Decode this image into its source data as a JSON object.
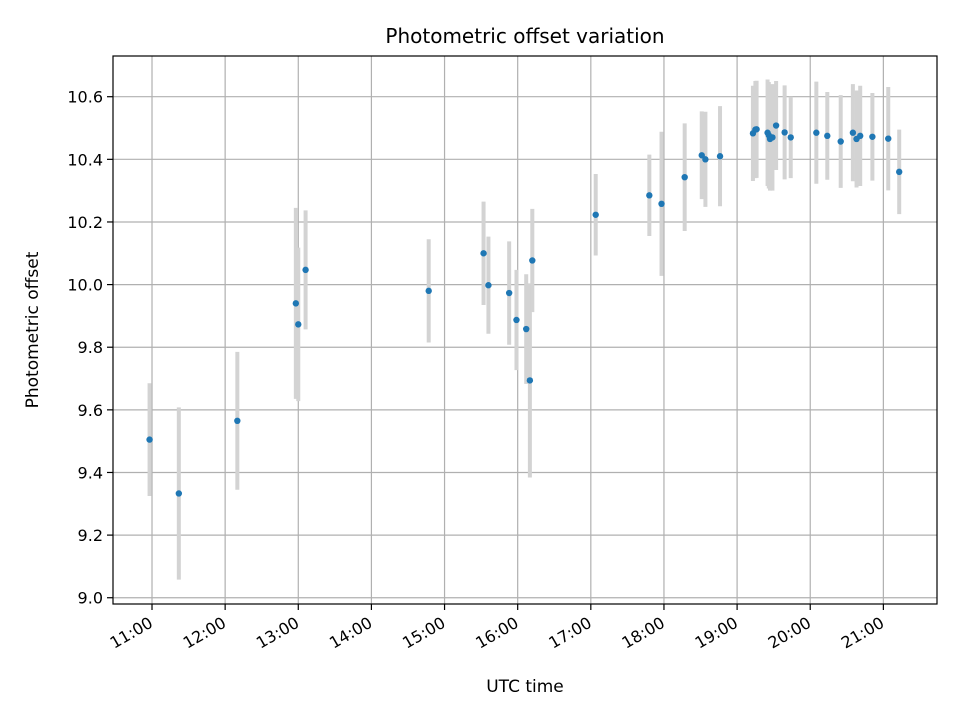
{
  "chart_data": {
    "type": "scatter",
    "title": "Photometric offset variation",
    "xlabel": "UTC time",
    "ylabel": "Photometric offset",
    "x_unit": "UTC time (HH:MM)",
    "xlim": [
      "10:28",
      "21:44"
    ],
    "ylim": [
      8.98,
      10.73
    ],
    "grid": true,
    "x_ticks": [
      "11:00",
      "12:00",
      "13:00",
      "14:00",
      "15:00",
      "16:00",
      "17:00",
      "18:00",
      "19:00",
      "20:00",
      "21:00"
    ],
    "y_ticks": [
      "9.0",
      "9.2",
      "9.4",
      "9.6",
      "9.8",
      "10.0",
      "10.2",
      "10.4",
      "10.6"
    ],
    "marker_color": "#1f77b4",
    "errorbar_color": "#d3d3d3",
    "points": [
      {
        "x": "10:58",
        "y": 9.505,
        "err": 0.18
      },
      {
        "x": "11:22",
        "y": 9.333,
        "err": 0.275
      },
      {
        "x": "12:10",
        "y": 9.565,
        "err": 0.22
      },
      {
        "x": "12:58",
        "y": 9.94,
        "err": 0.305
      },
      {
        "x": "13:00",
        "y": 9.873,
        "err": 0.245
      },
      {
        "x": "13:06",
        "y": 10.047,
        "err": 0.19
      },
      {
        "x": "14:47",
        "y": 9.98,
        "err": 0.165
      },
      {
        "x": "15:32",
        "y": 10.1,
        "err": 0.165
      },
      {
        "x": "15:36",
        "y": 9.998,
        "err": 0.155
      },
      {
        "x": "15:53",
        "y": 9.973,
        "err": 0.165
      },
      {
        "x": "15:59",
        "y": 9.887,
        "err": 0.16
      },
      {
        "x": "16:07",
        "y": 9.858,
        "err": 0.175
      },
      {
        "x": "16:10",
        "y": 9.694,
        "err": 0.31
      },
      {
        "x": "16:12",
        "y": 10.077,
        "err": 0.165
      },
      {
        "x": "17:04",
        "y": 10.223,
        "err": 0.13
      },
      {
        "x": "17:48",
        "y": 10.285,
        "err": 0.13
      },
      {
        "x": "17:58",
        "y": 10.258,
        "err": 0.23
      },
      {
        "x": "18:17",
        "y": 10.343,
        "err": 0.172
      },
      {
        "x": "18:31",
        "y": 10.413,
        "err": 0.14
      },
      {
        "x": "18:34",
        "y": 10.4,
        "err": 0.152
      },
      {
        "x": "18:46",
        "y": 10.41,
        "err": 0.16
      },
      {
        "x": "19:13",
        "y": 10.483,
        "err": 0.152
      },
      {
        "x": "19:15",
        "y": 10.495,
        "err": 0.155
      },
      {
        "x": "19:16",
        "y": 10.496,
        "err": 0.155
      },
      {
        "x": "19:25",
        "y": 10.485,
        "err": 0.17
      },
      {
        "x": "19:26",
        "y": 10.477,
        "err": 0.17
      },
      {
        "x": "19:27",
        "y": 10.465,
        "err": 0.165
      },
      {
        "x": "19:29",
        "y": 10.47,
        "err": 0.17
      },
      {
        "x": "19:32",
        "y": 10.508,
        "err": 0.142
      },
      {
        "x": "19:39",
        "y": 10.486,
        "err": 0.15
      },
      {
        "x": "19:44",
        "y": 10.47,
        "err": 0.13
      },
      {
        "x": "20:05",
        "y": 10.485,
        "err": 0.163
      },
      {
        "x": "20:14",
        "y": 10.475,
        "err": 0.14
      },
      {
        "x": "20:25",
        "y": 10.457,
        "err": 0.148
      },
      {
        "x": "20:35",
        "y": 10.485,
        "err": 0.155
      },
      {
        "x": "20:38",
        "y": 10.465,
        "err": 0.155
      },
      {
        "x": "20:41",
        "y": 10.475,
        "err": 0.16
      },
      {
        "x": "20:51",
        "y": 10.472,
        "err": 0.14
      },
      {
        "x": "21:04",
        "y": 10.466,
        "err": 0.165
      },
      {
        "x": "21:13",
        "y": 10.36,
        "err": 0.135
      }
    ]
  }
}
